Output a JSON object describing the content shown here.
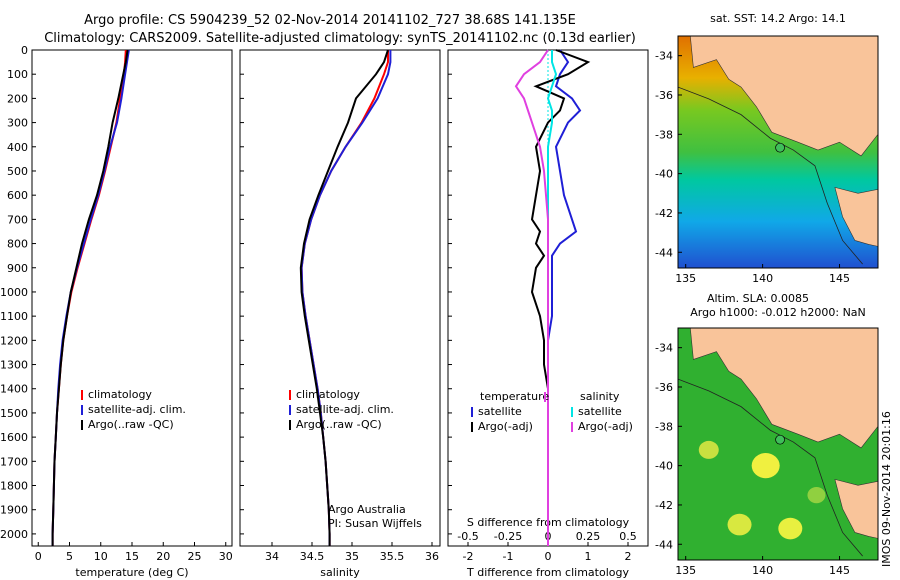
{
  "header": {
    "line1": "Argo profile: CS 5904239_52 02-Nov-2014 20141102_727 38.68S 141.135E",
    "line2": "Climatology: CARS2009. Satellite-adjusted climatology: synTS_20141102.nc (0.13d earlier)"
  },
  "colors": {
    "climatology": "#ff0000",
    "satellite": "#1f1fd6",
    "argo": "#000000",
    "sat_salinity": "#00e5e5",
    "argo_adj_salinity": "#e040e0",
    "land": "#f9c49a"
  },
  "credit": "IMOS 09-Nov-2014 20:01:16",
  "chart_data": [
    {
      "type": "line",
      "name": "temperature",
      "xlabel": "temperature (deg C)",
      "ylabel": "",
      "xlim": [
        -1,
        31
      ],
      "ylim": [
        2050,
        0
      ],
      "xticks": [
        0,
        5,
        10,
        15,
        20,
        25,
        30
      ],
      "yticks": [
        0,
        100,
        200,
        300,
        400,
        500,
        600,
        700,
        800,
        900,
        1000,
        1100,
        1200,
        1300,
        1400,
        1500,
        1600,
        1700,
        1800,
        1900,
        2000
      ],
      "y": [
        0,
        50,
        100,
        200,
        300,
        400,
        500,
        600,
        700,
        800,
        900,
        1000,
        1100,
        1200,
        1300,
        1400,
        1500,
        1600,
        1700,
        1800,
        1900,
        2000,
        2050
      ],
      "series": [
        {
          "name": "climatology",
          "color": "#ff0000",
          "values": [
            14.0,
            13.9,
            13.7,
            13.1,
            12.5,
            11.6,
            10.7,
            9.7,
            8.5,
            7.4,
            6.3,
            5.3,
            4.6,
            4.0,
            3.6,
            3.3,
            3.0,
            2.8,
            2.6,
            2.5,
            2.4,
            2.3,
            2.3
          ]
        },
        {
          "name": "satellite-adj. clim.",
          "color": "#1f1fd6",
          "values": [
            14.5,
            14.2,
            13.9,
            13.3,
            12.6,
            11.5,
            10.6,
            9.6,
            8.4,
            7.3,
            6.2,
            5.2,
            4.5,
            3.9,
            3.5,
            3.2,
            3.0,
            2.8,
            2.6,
            2.5,
            2.4,
            2.3,
            2.3
          ]
        },
        {
          "name": "Argo(..raw -QC)",
          "color": "#000000",
          "values": [
            14.3,
            14.0,
            13.6,
            12.8,
            11.9,
            11.2,
            10.4,
            9.4,
            8.1,
            7.0,
            6.1,
            5.2,
            4.6,
            4.0,
            3.6,
            3.3,
            3.0,
            2.8,
            2.6,
            2.5,
            2.4,
            2.3,
            2.3
          ]
        }
      ],
      "legend": {
        "position": "bottom-right",
        "labels": [
          "climatology",
          "satellite-adj. clim.",
          "Argo(..raw -QC)"
        ]
      }
    },
    {
      "type": "line",
      "name": "salinity",
      "xlabel": "salinity",
      "xlim": [
        33.6,
        36.1
      ],
      "ylim": [
        2050,
        0
      ],
      "xticks": [
        34,
        34.5,
        35,
        35.5,
        36
      ],
      "y": [
        0,
        50,
        100,
        200,
        300,
        400,
        500,
        600,
        700,
        800,
        900,
        1000,
        1100,
        1200,
        1300,
        1400,
        1500,
        1600,
        1700,
        1800,
        1900,
        2000,
        2050
      ],
      "series": [
        {
          "name": "climatology",
          "color": "#ff0000",
          "values": [
            35.45,
            35.45,
            35.4,
            35.28,
            35.12,
            34.92,
            34.74,
            34.6,
            34.49,
            34.41,
            34.37,
            34.38,
            34.42,
            34.47,
            34.52,
            34.57,
            34.61,
            34.64,
            34.67,
            34.69,
            34.71,
            34.72,
            34.72
          ]
        },
        {
          "name": "satellite-adj. clim.",
          "color": "#1f1fd6",
          "values": [
            35.48,
            35.48,
            35.45,
            35.32,
            35.13,
            34.92,
            34.74,
            34.6,
            34.49,
            34.41,
            34.37,
            34.38,
            34.42,
            34.47,
            34.52,
            34.57,
            34.61,
            34.64,
            34.67,
            34.69,
            34.71,
            34.72,
            34.72
          ]
        },
        {
          "name": "Argo(..raw -QC)",
          "color": "#000000",
          "values": [
            35.45,
            35.4,
            35.3,
            35.05,
            34.95,
            34.82,
            34.7,
            34.58,
            34.47,
            34.4,
            34.36,
            34.37,
            34.41,
            34.46,
            34.51,
            34.56,
            34.6,
            34.64,
            34.67,
            34.69,
            34.71,
            34.72,
            34.72
          ]
        }
      ],
      "legend": {
        "position": "bottom-right",
        "labels": [
          "climatology",
          "satellite-adj. clim.",
          "Argo(..raw -QC)"
        ]
      },
      "annotation": [
        "Argo Australia",
        "PI: Susan Wijffels"
      ]
    },
    {
      "type": "line",
      "name": "difference",
      "xlabel": "T difference from climatology",
      "xlabel_top": "S difference from climatology",
      "xlim": [
        -2.5,
        2.5
      ],
      "ylim": [
        2050,
        0
      ],
      "xticks": [
        -2,
        -1,
        0,
        1,
        2
      ],
      "s_ticks": [
        {
          "label": "-0.5",
          "x": -2
        },
        {
          "label": "-0.25",
          "x": -1
        },
        {
          "label": "0",
          "x": 0
        },
        {
          "label": "0.25",
          "x": 1
        },
        {
          "label": "0.5",
          "x": 2
        }
      ],
      "y": [
        0,
        50,
        100,
        150,
        200,
        250,
        300,
        400,
        500,
        600,
        700,
        750,
        800,
        850,
        900,
        1000,
        1100,
        1200,
        1300,
        1400,
        1500,
        1600,
        1700,
        1800,
        1900,
        2000,
        2050
      ],
      "series": [
        {
          "name": "temperature satellite",
          "color": "#1f1fd6",
          "values": [
            0.3,
            0.5,
            0.3,
            0.2,
            0.6,
            0.8,
            0.5,
            0.2,
            0.3,
            0.4,
            0.6,
            0.7,
            0.3,
            0.1,
            0.1,
            0.1,
            0.1,
            0.0,
            0.0,
            0.0,
            0.0,
            0.0,
            0.0,
            0.0,
            0.0,
            0.0,
            0.0
          ]
        },
        {
          "name": "temperature Argo(-adj)",
          "color": "#000000",
          "values": [
            0.2,
            1.0,
            0.5,
            -0.3,
            0.4,
            0.3,
            0.0,
            -0.3,
            -0.2,
            -0.3,
            -0.4,
            -0.2,
            -0.3,
            -0.1,
            -0.3,
            -0.4,
            -0.2,
            -0.1,
            -0.1,
            0.0,
            0.0,
            0.0,
            0.0,
            0.0,
            0.0,
            0.0,
            0.0
          ]
        },
        {
          "name": "salinity satellite",
          "color": "#00e5e5",
          "values": [
            0.1,
            0.1,
            0.2,
            0.1,
            0.0,
            0.1,
            0.1,
            0.0,
            0.0,
            0.0,
            0.0,
            0.0,
            0.0,
            0.0,
            0.0,
            0.0,
            0.0,
            0.0,
            0.0,
            0.0,
            0.0,
            0.0,
            0.0,
            0.0,
            0.0,
            0.0,
            0.0
          ]
        },
        {
          "name": "salinity Argo(-adj)",
          "color": "#e040e0",
          "values": [
            0.0,
            -0.2,
            -0.6,
            -0.8,
            -0.6,
            -0.5,
            -0.4,
            -0.2,
            -0.1,
            -0.05,
            0.0,
            0.0,
            0.0,
            0.0,
            0.0,
            0.0,
            0.0,
            0.0,
            0.0,
            0.0,
            0.0,
            0.0,
            0.0,
            0.0,
            0.0,
            0.0,
            0.0
          ]
        }
      ],
      "legend": {
        "position": "bottom",
        "headers": [
          "temperature",
          "salinity"
        ],
        "labels": [
          "satellite",
          "Argo(-adj)",
          "satellite",
          "Argo(-adj)"
        ]
      }
    },
    {
      "type": "heatmap",
      "name": "sst-map",
      "title": "sat. SST: 14.2 Argo: 14.1",
      "xlim": [
        134.5,
        147.5
      ],
      "ylim": [
        -44.8,
        -33
      ],
      "xticks": [
        135,
        140,
        145
      ],
      "yticks": [
        -34,
        -36,
        -38,
        -40,
        -42,
        -44
      ],
      "marker": {
        "lon": 141.135,
        "lat": -38.68
      }
    },
    {
      "type": "heatmap",
      "name": "sla-map",
      "title": "Altim. SLA: 0.0085",
      "subtitle": "Argo h1000: -0.012 h2000: NaN",
      "xlim": [
        134.5,
        147.5
      ],
      "ylim": [
        -44.8,
        -33
      ],
      "xticks": [
        135,
        140,
        145
      ],
      "yticks": [
        -34,
        -36,
        -38,
        -40,
        -42,
        -44
      ],
      "marker": {
        "lon": 141.135,
        "lat": -38.68
      }
    }
  ]
}
